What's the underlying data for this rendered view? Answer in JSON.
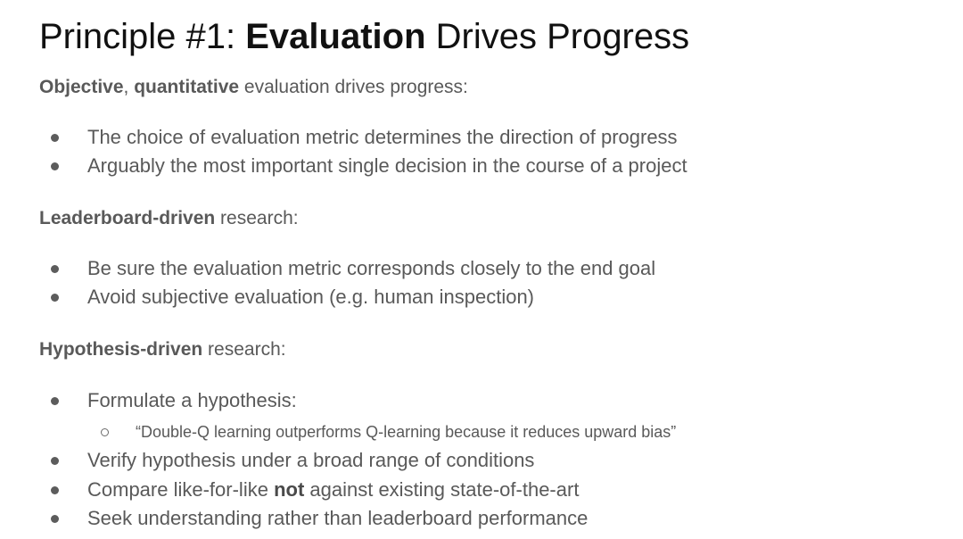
{
  "title": {
    "prefix": "Principle #1: ",
    "bold": "Evaluation",
    "suffix": " Drives Progress"
  },
  "sections": [
    {
      "heading_bold": "Objective",
      "heading_mid": ", ",
      "heading_bold2": "quantitative",
      "heading_rest": " evaluation drives progress:",
      "bullets": [
        "The choice of evaluation metric determines the direction of progress",
        "Arguably the most important single decision in the course of a project"
      ]
    },
    {
      "heading_bold": "Leaderboard-driven",
      "heading_rest": " research:",
      "bullets": [
        "Be sure the evaluation metric corresponds closely to the end goal",
        "Avoid subjective evaluation (e.g. human inspection)"
      ]
    },
    {
      "heading_bold": "Hypothesis-driven",
      "heading_rest": " research:",
      "bullets": [
        "Formulate a hypothesis:",
        "Verify hypothesis under a broad range of conditions",
        "Compare like-for-like",
        "Seek understanding rather than leaderboard performance"
      ],
      "sub_bullet": "“Double-Q learning outperforms Q-learning because it reduces upward bias”",
      "compare_bold": "not",
      "compare_rest": " against existing state-of-the-art"
    }
  ]
}
